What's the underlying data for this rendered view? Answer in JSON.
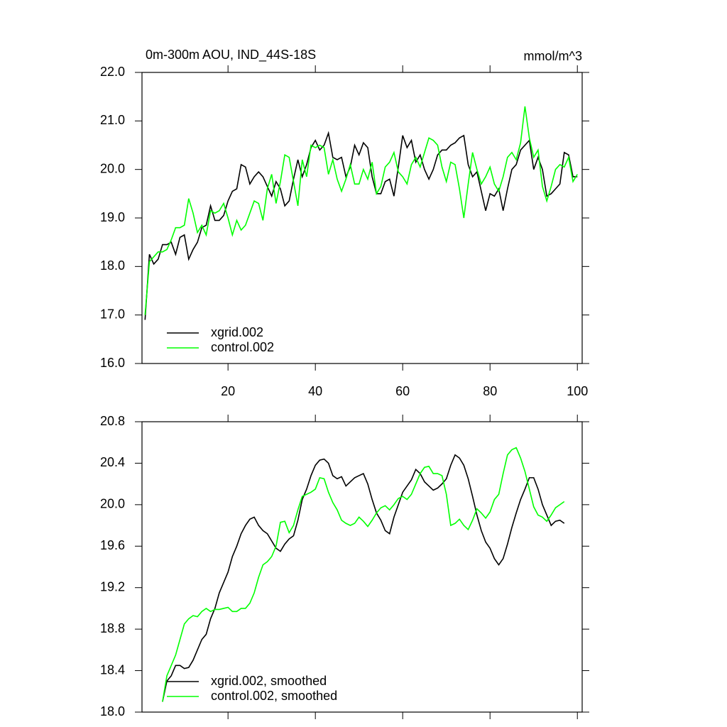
{
  "chart_data": [
    {
      "type": "line",
      "title": "0m-300m AOU, IND_44S-18S",
      "units": "mmol/m^3",
      "x": [
        1,
        2,
        3,
        4,
        5,
        6,
        7,
        8,
        9,
        10,
        11,
        12,
        13,
        14,
        15,
        16,
        17,
        18,
        19,
        20,
        21,
        22,
        23,
        24,
        25,
        26,
        27,
        28,
        29,
        30,
        31,
        32,
        33,
        34,
        35,
        36,
        37,
        38,
        39,
        40,
        41,
        42,
        43,
        44,
        45,
        46,
        47,
        48,
        49,
        50,
        51,
        52,
        53,
        54,
        55,
        56,
        57,
        58,
        59,
        60,
        61,
        62,
        63,
        64,
        65,
        66,
        67,
        68,
        69,
        70,
        71,
        72,
        73,
        74,
        75,
        76,
        77,
        78,
        79,
        80,
        81,
        82,
        83,
        84,
        85,
        86,
        87,
        88,
        89,
        90,
        91,
        92,
        93,
        94,
        95,
        96,
        97,
        98,
        99,
        100
      ],
      "series": [
        {
          "name": "xgrid.002",
          "color": "#000000",
          "values": [
            16.9,
            18.25,
            18.05,
            18.15,
            18.45,
            18.45,
            18.5,
            18.25,
            18.6,
            18.65,
            18.15,
            18.35,
            18.5,
            18.8,
            18.85,
            19.25,
            18.95,
            18.95,
            19.05,
            19.35,
            19.55,
            19.6,
            20.1,
            20.05,
            19.7,
            19.85,
            19.95,
            19.85,
            19.65,
            19.45,
            19.75,
            19.6,
            19.25,
            19.35,
            19.8,
            20.2,
            19.85,
            20.1,
            20.45,
            20.6,
            20.4,
            20.5,
            20.75,
            20.25,
            20.2,
            20.25,
            19.85,
            20.05,
            20.5,
            20.3,
            20.55,
            20.45,
            19.85,
            19.5,
            19.5,
            19.75,
            19.8,
            19.45,
            20.05,
            20.7,
            20.45,
            20.6,
            20.15,
            20.3,
            20.0,
            19.8,
            20.0,
            20.3,
            20.4,
            20.4,
            20.5,
            20.55,
            20.65,
            20.7,
            20.1,
            19.85,
            19.95,
            19.55,
            19.15,
            19.5,
            19.45,
            19.6,
            19.15,
            19.6,
            20.0,
            20.1,
            20.4,
            20.5,
            20.6,
            20.0,
            20.25,
            20.0,
            19.45,
            19.5,
            19.6,
            19.7,
            20.35,
            20.3,
            19.85,
            19.85
          ]
        },
        {
          "name": "control.002",
          "color": "#00ff00",
          "values": [
            17.0,
            18.1,
            18.2,
            18.3,
            18.3,
            18.35,
            18.55,
            18.8,
            18.8,
            18.85,
            19.4,
            19.1,
            18.7,
            18.85,
            18.65,
            19.15,
            19.1,
            19.15,
            19.3,
            19.0,
            18.65,
            18.95,
            18.75,
            18.85,
            19.1,
            19.35,
            19.3,
            18.95,
            19.6,
            19.9,
            19.3,
            19.75,
            20.3,
            20.25,
            19.75,
            19.25,
            20.2,
            19.85,
            20.5,
            20.45,
            20.5,
            20.45,
            19.9,
            20.2,
            19.8,
            19.55,
            19.8,
            20.1,
            19.7,
            19.7,
            20.0,
            19.8,
            20.15,
            19.5,
            19.65,
            20.05,
            20.15,
            20.35,
            19.95,
            19.85,
            19.7,
            20.1,
            20.25,
            20.05,
            20.35,
            20.65,
            20.6,
            20.5,
            20.05,
            19.75,
            20.15,
            20.1,
            19.6,
            19.0,
            19.7,
            20.35,
            20.0,
            19.7,
            19.85,
            20.05,
            19.7,
            19.55,
            19.85,
            20.25,
            20.35,
            20.2,
            20.55,
            21.3,
            20.65,
            20.25,
            20.4,
            19.65,
            19.35,
            19.65,
            20.0,
            20.1,
            20.05,
            20.25,
            19.75,
            19.9
          ]
        }
      ],
      "xlim": [
        0.3,
        101.1
      ],
      "xticks": [
        20,
        40,
        60,
        80,
        100
      ],
      "xticklabels": true,
      "ylim": [
        16,
        22
      ],
      "yticks": [
        {
          "value": 16,
          "label": "16.0"
        },
        {
          "value": 17,
          "label": "17.0"
        },
        {
          "value": 18,
          "label": "18.0"
        },
        {
          "value": 19,
          "label": "19.0"
        },
        {
          "value": 20,
          "label": "20.0"
        },
        {
          "value": 21,
          "label": "21.0"
        },
        {
          "value": 22,
          "label": "22.0"
        }
      ],
      "legend": "lower left"
    },
    {
      "type": "line",
      "x": [
        5,
        6,
        7,
        8,
        9,
        10,
        11,
        12,
        13,
        14,
        15,
        16,
        17,
        18,
        19,
        20,
        21,
        22,
        23,
        24,
        25,
        26,
        27,
        28,
        29,
        30,
        31,
        32,
        33,
        34,
        35,
        36,
        37,
        38,
        39,
        40,
        41,
        42,
        43,
        44,
        45,
        46,
        47,
        48,
        49,
        50,
        51,
        52,
        53,
        54,
        55,
        56,
        57,
        58,
        59,
        60,
        61,
        62,
        63,
        64,
        65,
        66,
        67,
        68,
        69,
        70,
        71,
        72,
        73,
        74,
        75,
        76,
        77,
        78,
        79,
        80,
        81,
        82,
        83,
        84,
        85,
        86,
        87,
        88,
        89,
        90,
        91,
        92,
        93,
        94,
        95,
        96,
        97
      ],
      "series": [
        {
          "name": "xgrid.002, smoothed",
          "color": "#000000",
          "values": [
            18.1,
            18.3,
            18.35,
            18.45,
            18.45,
            18.42,
            18.43,
            18.5,
            18.6,
            18.7,
            18.75,
            18.9,
            19.0,
            19.15,
            19.25,
            19.35,
            19.5,
            19.6,
            19.72,
            19.8,
            19.86,
            19.88,
            19.8,
            19.75,
            19.72,
            19.65,
            19.58,
            19.55,
            19.62,
            19.67,
            19.7,
            19.85,
            20.05,
            20.15,
            20.28,
            20.38,
            20.43,
            20.44,
            20.4,
            20.28,
            20.25,
            20.27,
            20.18,
            20.22,
            20.26,
            20.28,
            20.3,
            20.2,
            20.05,
            19.92,
            19.85,
            19.75,
            19.72,
            19.88,
            20.0,
            20.12,
            20.18,
            20.24,
            20.34,
            20.3,
            20.22,
            20.18,
            20.14,
            20.16,
            20.2,
            20.25,
            20.38,
            20.48,
            20.45,
            20.38,
            20.25,
            20.08,
            19.9,
            19.75,
            19.64,
            19.58,
            19.48,
            19.42,
            19.48,
            19.62,
            19.78,
            19.92,
            20.05,
            20.15,
            20.26,
            20.26,
            20.15,
            20.0,
            19.9,
            19.8,
            19.84,
            19.85,
            19.82
          ]
        },
        {
          "name": "control.002, smoothed",
          "color": "#00ff00",
          "values": [
            18.1,
            18.35,
            18.45,
            18.55,
            18.7,
            18.85,
            18.9,
            18.93,
            18.92,
            18.97,
            19.0,
            18.97,
            18.99,
            18.99,
            19.0,
            19.01,
            18.97,
            18.97,
            19.0,
            19.0,
            19.05,
            19.15,
            19.3,
            19.42,
            19.45,
            19.5,
            19.6,
            19.83,
            19.84,
            19.73,
            19.8,
            19.95,
            20.08,
            20.1,
            20.12,
            20.15,
            20.26,
            20.25,
            20.12,
            20.02,
            19.95,
            19.85,
            19.82,
            19.8,
            19.82,
            19.88,
            19.84,
            19.79,
            19.85,
            19.92,
            19.97,
            19.99,
            19.95,
            20.0,
            20.06,
            20.08,
            20.05,
            20.1,
            20.2,
            20.3,
            20.36,
            20.37,
            20.3,
            20.3,
            20.28,
            20.1,
            19.8,
            19.82,
            19.86,
            19.8,
            19.76,
            19.85,
            19.96,
            19.92,
            19.87,
            19.93,
            20.05,
            20.1,
            20.3,
            20.48,
            20.53,
            20.55,
            20.45,
            20.32,
            20.15,
            19.98,
            19.9,
            19.88,
            19.84,
            19.9,
            19.97,
            20.0,
            20.03
          ]
        }
      ],
      "xlim": [
        0.3,
        101.1
      ],
      "xticks": [
        20,
        40,
        60,
        80,
        100
      ],
      "xticklabels": false,
      "ylim": [
        18,
        20.8
      ],
      "yticks": [
        {
          "value": 18,
          "label": "18.0"
        },
        18.4,
        18.8,
        19.2,
        19.6,
        {
          "value": 20,
          "label": "20.0"
        },
        20.4,
        20.8
      ],
      "legend": "lower left"
    }
  ]
}
